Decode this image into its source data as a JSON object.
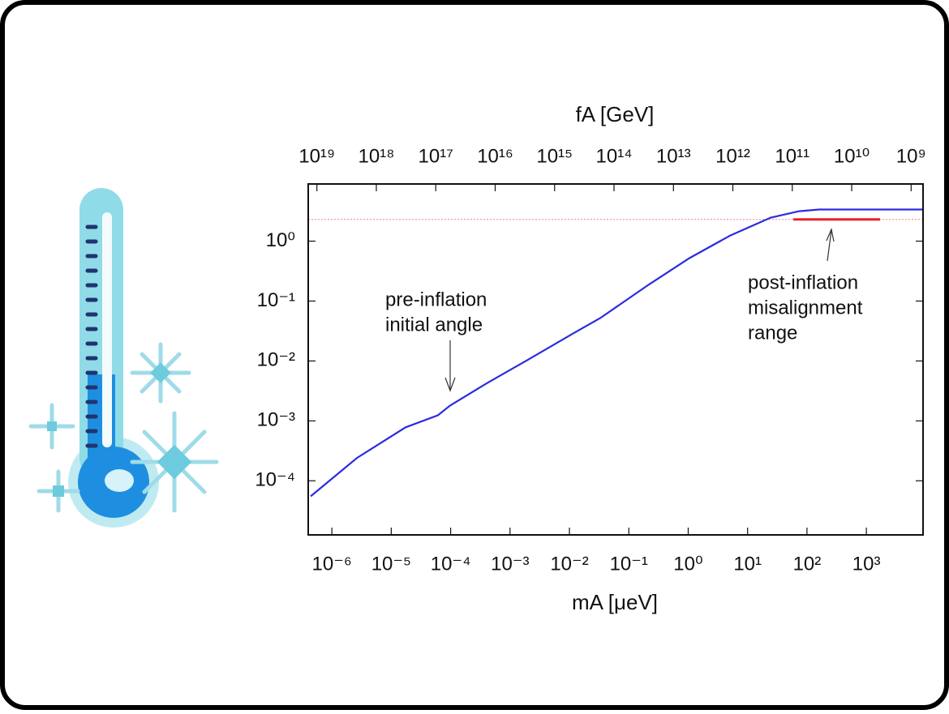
{
  "chart_data": {
    "type": "line",
    "x2label": "fA [GeV]",
    "xlabel": "mA [μeV]",
    "xscale": "log",
    "yscale": "log",
    "xlim": [
      4e-07,
      9000
    ],
    "xticks": [
      {
        "value": 1e-06,
        "label": "10⁻⁶"
      },
      {
        "value": 1e-05,
        "label": "10⁻⁵"
      },
      {
        "value": 0.0001,
        "label": "10⁻⁴"
      },
      {
        "value": 0.001,
        "label": "10⁻³"
      },
      {
        "value": 0.01,
        "label": "10⁻²"
      },
      {
        "value": 0.1,
        "label": "10⁻¹"
      },
      {
        "value": 1,
        "label": "10⁰"
      },
      {
        "value": 10,
        "label": "10¹"
      },
      {
        "value": 100,
        "label": "10²"
      },
      {
        "value": 1000,
        "label": "10³"
      }
    ],
    "x2lim": [
      1.4e+19,
      630000000.0
    ],
    "x2ticks": [
      {
        "value": 1e+19,
        "label": "10¹⁹"
      },
      {
        "value": 1e+18,
        "label": "10¹⁸"
      },
      {
        "value": 1e+17,
        "label": "10¹⁷"
      },
      {
        "value": 1e+16,
        "label": "10¹⁶"
      },
      {
        "value": 1000000000000000.0,
        "label": "10¹⁵"
      },
      {
        "value": 100000000000000.0,
        "label": "10¹⁴"
      },
      {
        "value": 10000000000000.0,
        "label": "10¹³"
      },
      {
        "value": 1000000000000.0,
        "label": "10¹²"
      },
      {
        "value": 100000000000.0,
        "label": "10¹¹"
      },
      {
        "value": 10000000000.0,
        "label": "10¹⁰"
      },
      {
        "value": 1000000000.0,
        "label": "10⁹"
      }
    ],
    "ylim": [
      1.25e-05,
      9
    ],
    "yticks": [
      {
        "value": 1,
        "label": "10⁰"
      },
      {
        "value": 0.1,
        "label": "10⁻¹"
      },
      {
        "value": 0.01,
        "label": "10⁻²"
      },
      {
        "value": 0.001,
        "label": "10⁻³"
      },
      {
        "value": 0.0001,
        "label": "10⁻⁴"
      }
    ],
    "hline": {
      "value": 2.3,
      "color": "#f08080"
    },
    "series": [
      {
        "color": "#2b2be0",
        "x": [
          4.4e-07,
          2.64e-06,
          1.74e-05,
          6.1e-05,
          9.8e-05,
          0.0004,
          0.00195,
          0.011,
          0.033,
          0.22,
          1.05,
          5.1,
          24.5,
          74,
          162,
          9000
        ],
        "values": [
          5.5e-05,
          0.00024,
          0.00078,
          0.00124,
          0.0018,
          0.0042,
          0.0103,
          0.028,
          0.052,
          0.19,
          0.52,
          1.24,
          2.47,
          3.16,
          3.37,
          3.37
        ]
      },
      {
        "color": "#e8202a",
        "x": [
          59,
          1700
        ],
        "values": [
          2.3,
          2.3
        ]
      }
    ],
    "annotations": [
      {
        "lines": [
          "pre-inflation",
          "initial angle"
        ]
      },
      {
        "lines": [
          "post-inflation",
          "misalignment",
          "range"
        ]
      }
    ]
  }
}
